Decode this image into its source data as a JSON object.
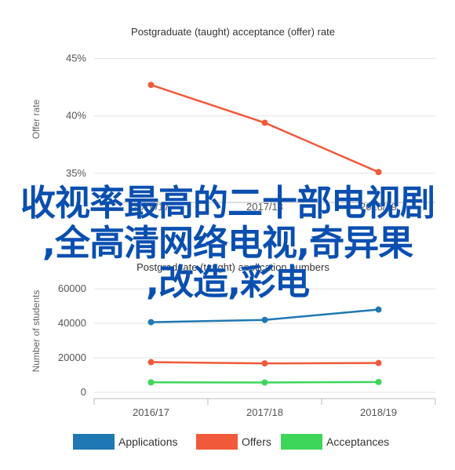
{
  "chart_data": [
    {
      "type": "line",
      "title": "Postgraduate (taught) acceptance (offer) rate",
      "ylabel": "Offer rate",
      "categories": [
        "2016/17",
        "2017/18",
        "2018/19"
      ],
      "yticks": [
        "35%",
        "40%",
        "45%"
      ],
      "ylim": [
        33,
        46
      ],
      "grid": true,
      "series": [
        {
          "values": [
            42.7,
            39.4,
            35.1
          ],
          "color": "#f05a3a"
        }
      ]
    },
    {
      "type": "line",
      "title": "Postgraduate (taught) application numbers",
      "ylabel": "Number of students",
      "categories": [
        "2016/17",
        "2017/18",
        "2018/19"
      ],
      "yticks": [
        "0",
        "20000",
        "40000",
        "60000"
      ],
      "ylim": [
        0,
        66000
      ],
      "grid": true,
      "legend": "bottom",
      "series": [
        {
          "name": "Applications",
          "values": [
            40700,
            42000,
            48000
          ],
          "color": "#1f78b4"
        },
        {
          "name": "Offers",
          "values": [
            17500,
            16800,
            17000
          ],
          "color": "#f05a3a"
        },
        {
          "name": "Acceptances",
          "values": [
            5800,
            5700,
            6000
          ],
          "color": "#3dd65a"
        }
      ]
    }
  ],
  "overlay_text": {
    "line1": "收视率最高的二十部电视剧",
    "line2": ",全高清网络电视,奇异果",
    "line3": ",改造,彩电"
  }
}
